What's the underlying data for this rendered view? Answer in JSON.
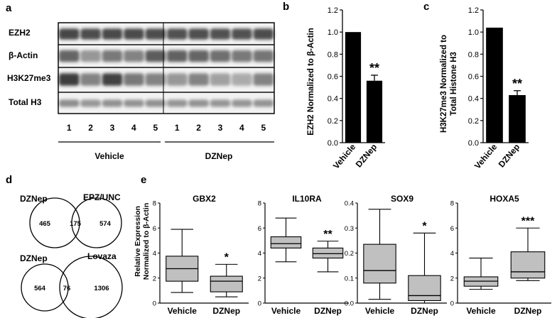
{
  "panel_letters": {
    "a": "a",
    "b": "b",
    "c": "c",
    "d": "d",
    "e": "e"
  },
  "colors": {
    "bar": "#000000",
    "box": "#c0c0c0",
    "blot_bg": "#f2f2f2",
    "band": "#2a2a2a"
  },
  "panel_a": {
    "rows": [
      "EZH2",
      "β-Actin",
      "H3K27me3",
      "Total H3"
    ],
    "lanes": [
      "1",
      "2",
      "3",
      "4",
      "5",
      "1",
      "2",
      "3",
      "4",
      "5"
    ],
    "groups": [
      "Vehicle",
      "DZNep"
    ],
    "band_darkness": [
      [
        0.85,
        0.82,
        0.84,
        0.83,
        0.82,
        0.8,
        0.81,
        0.8,
        0.8,
        0.82
      ],
      [
        0.7,
        0.45,
        0.6,
        0.55,
        0.75,
        0.72,
        0.7,
        0.65,
        0.6,
        0.62
      ],
      [
        0.9,
        0.55,
        0.88,
        0.6,
        0.55,
        0.45,
        0.55,
        0.4,
        0.35,
        0.55
      ],
      [
        0.5,
        0.45,
        0.48,
        0.47,
        0.48,
        0.46,
        0.47,
        0.46,
        0.46,
        0.47
      ]
    ]
  },
  "chart_data": [
    {
      "panel": "b",
      "type": "bar",
      "categories": [
        "Vehicle",
        "DZNep"
      ],
      "values": [
        1.0,
        0.56
      ],
      "errors": [
        0,
        0.05
      ],
      "annotations": [
        "",
        "**"
      ],
      "ylabel": "EZH2 Normalized to β-Actin",
      "ylim": [
        0,
        1.2
      ],
      "yticks": [
        "0.0",
        "0.2",
        "0.4",
        "0.6",
        "0.8",
        "1.0",
        "1.2"
      ]
    },
    {
      "panel": "c",
      "type": "bar",
      "categories": [
        "Vehicle",
        "DZNep"
      ],
      "values": [
        1.04,
        0.43
      ],
      "errors": [
        0,
        0.04
      ],
      "annotations": [
        "",
        "**"
      ],
      "ylabel_line1": "H3K27me3 Normalized to",
      "ylabel_line2": "Total Histone H3",
      "ylim": [
        0,
        1.2
      ],
      "yticks": [
        "0.0",
        "0.2",
        "0.4",
        "0.6",
        "0.8",
        "1.0",
        "1.2"
      ]
    },
    {
      "panel": "e",
      "type": "box",
      "title": "GBX2",
      "ylabel_line1": "Relative Expression",
      "ylabel_line2": "Normalized to β-Actin",
      "ylim": [
        0,
        8
      ],
      "yticks": [
        "0",
        "2",
        "4",
        "6",
        "8"
      ],
      "categories": [
        "Vehicle",
        "DZNep"
      ],
      "boxes": [
        {
          "min": 0.85,
          "q1": 1.75,
          "median": 2.75,
          "q3": 3.75,
          "max": 5.9
        },
        {
          "min": 0.5,
          "q1": 0.9,
          "median": 1.75,
          "q3": 2.15,
          "max": 3.1
        }
      ],
      "annotations": [
        "",
        "*"
      ]
    },
    {
      "panel": "e",
      "type": "box",
      "title": "IL10RA",
      "ylim": [
        0,
        8
      ],
      "yticks": [
        "0",
        "2",
        "4",
        "6",
        "8"
      ],
      "categories": [
        "Vehicle",
        "DZNep"
      ],
      "boxes": [
        {
          "min": 3.3,
          "q1": 4.4,
          "median": 4.75,
          "q3": 5.3,
          "max": 6.8
        },
        {
          "min": 2.5,
          "q1": 3.6,
          "median": 3.95,
          "q3": 4.4,
          "max": 4.95
        }
      ],
      "annotations": [
        "",
        "**"
      ]
    },
    {
      "panel": "e",
      "type": "box",
      "title": "SOX9",
      "ylim": [
        0,
        0.4
      ],
      "yticks": [
        "0.0",
        "0.1",
        "0.2",
        "0.3",
        "0.4"
      ],
      "categories": [
        "Vehicle",
        "DZNep"
      ],
      "boxes": [
        {
          "min": 0.015,
          "q1": 0.08,
          "median": 0.13,
          "q3": 0.235,
          "max": 0.375
        },
        {
          "min": 0.0,
          "q1": 0.01,
          "median": 0.03,
          "q3": 0.11,
          "max": 0.28
        }
      ],
      "annotations": [
        "",
        "*"
      ]
    },
    {
      "panel": "e",
      "type": "box",
      "title": "HOXA5",
      "ylim": [
        0,
        8
      ],
      "yticks": [
        "0",
        "2",
        "4",
        "6",
        "8"
      ],
      "categories": [
        "Vehicle",
        "DZNep"
      ],
      "boxes": [
        {
          "min": 1.1,
          "q1": 1.35,
          "median": 1.75,
          "q3": 2.1,
          "max": 3.6
        },
        {
          "min": 1.8,
          "q1": 2.0,
          "median": 2.5,
          "q3": 4.1,
          "max": 6.0
        }
      ],
      "annotations": [
        "",
        "***"
      ]
    }
  ],
  "panel_d": {
    "venn_top": {
      "left_label": "DZNep",
      "right_label": "EPZ/UNC",
      "left_only": "465",
      "overlap": "175",
      "right_only": "574"
    },
    "venn_bottom": {
      "left_label": "DZNep",
      "right_label": "Lovaza",
      "left_only": "564",
      "overlap": "76",
      "right_only": "1306"
    }
  }
}
